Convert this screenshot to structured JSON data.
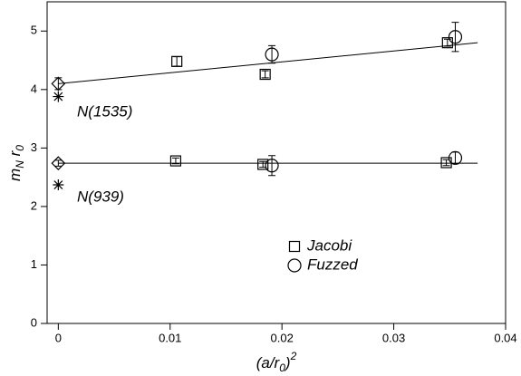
{
  "chart_data": {
    "type": "scatter",
    "xlabel": [
      "(a/r",
      "0",
      ")",
      "2"
    ],
    "ylabel": [
      "m",
      "N",
      " r",
      "0"
    ],
    "xlim": [
      -0.001,
      0.04
    ],
    "xticks": [
      0,
      0.01,
      0.02,
      0.03,
      0.04
    ],
    "ylim": [
      0,
      5.5
    ],
    "yticks": [
      0,
      1,
      2,
      3,
      4,
      5
    ],
    "legend": "center",
    "series": [
      {
        "name": "Jacobi",
        "marker": "square",
        "color": "#000000",
        "x": [
          0.0105,
          0.0183,
          0.0347,
          0.0106,
          0.0185,
          0.0348
        ],
        "values": [
          2.78,
          2.72,
          2.75,
          4.48,
          4.26,
          4.8
        ],
        "errors": [
          0.05,
          0.05,
          0.05,
          0.08,
          0.06,
          0.06
        ]
      },
      {
        "name": "Fuzzed",
        "marker": "circle",
        "color": "#000000",
        "x": [
          0.0191,
          0.0355,
          0.0191,
          0.0355
        ],
        "values": [
          2.7,
          2.83,
          4.6,
          4.9
        ],
        "errors": [
          0.17,
          0.1,
          0.15,
          0.25
        ]
      },
      {
        "marker": "diamond",
        "color": "#000000",
        "x": [
          0,
          0
        ],
        "values": [
          2.74,
          4.1
        ],
        "errors": [
          0.05,
          0.1
        ]
      },
      {
        "marker": "star",
        "color": "#000000",
        "x": [
          0,
          0
        ],
        "values": [
          2.37,
          3.88
        ]
      }
    ],
    "fits": [
      {
        "x": [
          0,
          0.0375
        ],
        "values": [
          2.74,
          2.74
        ]
      },
      {
        "x": [
          0,
          0.0375
        ],
        "values": [
          4.1,
          4.8
        ]
      }
    ],
    "annotations": [
      "N(1535)",
      "N(939)"
    ]
  }
}
